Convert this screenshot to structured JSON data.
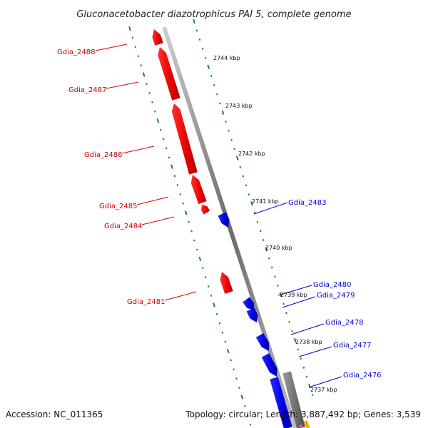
{
  "title": "Gluconacetobacter diazotrophicus PAI 5, complete genome",
  "footer": {
    "accession": "Accession: NC_011365",
    "topology": "Topology: circular; Length: 3,887,492 bp; Genes: 3,539"
  },
  "colors": {
    "forward_gene": "#ff0000",
    "reverse_gene": "#0000ee",
    "other_feature": "#777777",
    "dotted_ring": "#1a8a1a",
    "backbone": "#888888"
  },
  "scale_labels": [
    "2744 kbp",
    "2743 kbp",
    "2742 kbp",
    "2741 kbp",
    "2740 kbp",
    "2739 kbp",
    "2738 kbp",
    "2737 kbp"
  ],
  "forward_gene_labels": [
    "Gdia_2488",
    "Gdia_2487",
    "Gdia_2486",
    "Gdia_2485",
    "Gdia_2484",
    "Gdia_2481"
  ],
  "reverse_gene_labels": [
    "Gdia_2483",
    "Gdia_2480",
    "Gdia_2479",
    "Gdia_2478",
    "Gdia_2477",
    "Gdia_2476"
  ]
}
